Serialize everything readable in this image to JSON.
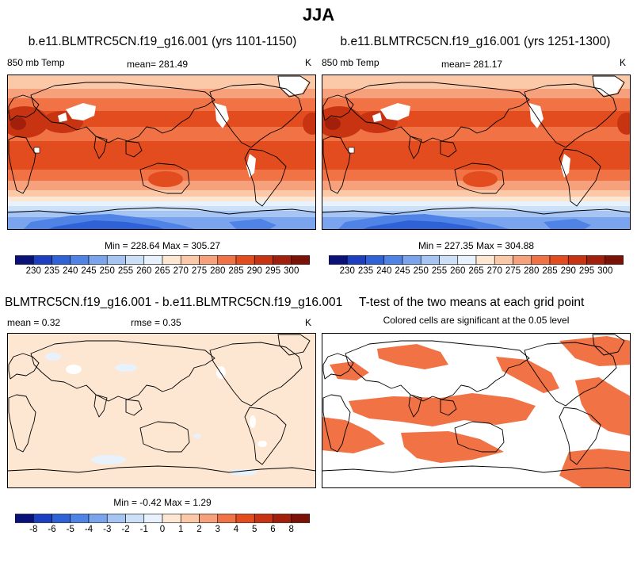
{
  "page_title": "JJA",
  "colors": {
    "white": "#ffffff",
    "land_line": "#000000",
    "sig": "#f07245"
  },
  "colorbar_colors": [
    "#0a1178",
    "#1c3ec0",
    "#2f62d6",
    "#4f84e6",
    "#7ba4ee",
    "#a7c5f3",
    "#cce0f8",
    "#e8f2fc",
    "#fde6d2",
    "#fbc9a7",
    "#f6a17c",
    "#f07245",
    "#e34c1e",
    "#c83412",
    "#a21f0c",
    "#7a1208"
  ],
  "diff_colorbar_colors": [
    "#0a1178",
    "#1c3ec0",
    "#2f62d6",
    "#4f84e6",
    "#7ba4ee",
    "#a7c5f3",
    "#cce0f8",
    "#e8f2fc",
    "#fde6d2",
    "#fbc9a7",
    "#f6a17c",
    "#f07245",
    "#e34c1e",
    "#c83412",
    "#a21f0c",
    "#7a1208"
  ],
  "chart_data": [
    {
      "type": "heatmap",
      "title": "b.e11.BLMTRC5CN.f19_g16.001 (yrs 1101-1150)",
      "left_label": "850 mb Temp",
      "center_label": "mean= 281.49",
      "units": "K",
      "stats": "Min = 228.64 Max = 305.27",
      "colorbar_ticks": [
        "230",
        "235",
        "240",
        "245",
        "250",
        "255",
        "260",
        "265",
        "270",
        "275",
        "280",
        "285",
        "290",
        "295",
        "300"
      ]
    },
    {
      "type": "heatmap",
      "title": "b.e11.BLMTRC5CN.f19_g16.001 (yrs 1251-1300)",
      "left_label": "850 mb Temp",
      "center_label": "mean= 281.17",
      "units": "K",
      "stats": "Min = 227.35 Max = 304.88",
      "colorbar_ticks": [
        "230",
        "235",
        "240",
        "245",
        "250",
        "255",
        "260",
        "265",
        "270",
        "275",
        "280",
        "285",
        "290",
        "295",
        "300"
      ]
    },
    {
      "type": "heatmap",
      "title": "BLMTRC5CN.f19_g16.001 - b.e11.BLMTRC5CN.f19_g16.001",
      "left_label": "mean =   0.32",
      "center_label": "rmse =   0.35",
      "units": "K",
      "stats": "Min =  -0.42 Max =   1.29",
      "colorbar_ticks": [
        "-8",
        "-6",
        "-5",
        "-4",
        "-3",
        "-2",
        "-1",
        "0",
        "1",
        "2",
        "3",
        "4",
        "5",
        "6",
        "8"
      ]
    },
    {
      "type": "heatmap",
      "title": "T-test of the two means at each grid point",
      "subtitle": "Colored cells are significant at the 0.05 level"
    }
  ]
}
